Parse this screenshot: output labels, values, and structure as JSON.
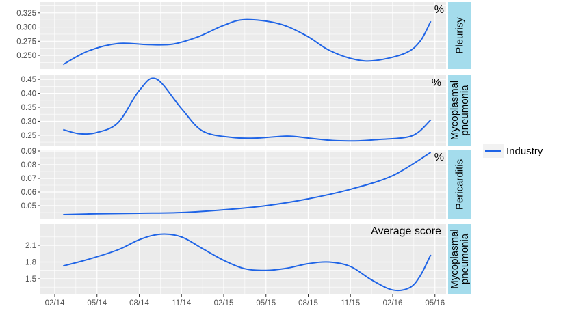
{
  "chart_data": {
    "type": "line",
    "x": [
      "02/14",
      "05/14",
      "08/14",
      "11/14",
      "02/15",
      "05/15",
      "08/15",
      "11/15",
      "02/16",
      "05/16"
    ],
    "legend": {
      "position": "right",
      "entries": [
        "Industry"
      ]
    },
    "colors": {
      "series": "#1f64e6",
      "panel": "#ebebeb",
      "grid": "#ffffff",
      "strip": "#a4dcec"
    },
    "grid": true,
    "panels": [
      {
        "strip_label": [
          "Pleurisy"
        ],
        "annotation": "%",
        "ylim": [
          0.226,
          0.344
        ],
        "yticks": [
          "0.250",
          "0.275",
          "0.300",
          "0.325"
        ],
        "ytick_values": [
          0.25,
          0.275,
          0.3,
          0.325
        ],
        "series": [
          {
            "name": "Industry",
            "x": [
              0.2,
              0.8,
              1.5,
              2.2,
              2.8,
              3.4,
              4.0,
              4.5,
              5.3,
              5.95,
              6.5,
              7.1,
              7.6,
              8.3,
              8.65,
              8.9
            ],
            "values": [
              0.234,
              0.258,
              0.271,
              0.269,
              0.27,
              0.283,
              0.303,
              0.313,
              0.306,
              0.285,
              0.259,
              0.243,
              0.241,
              0.254,
              0.275,
              0.31
            ]
          }
        ]
      },
      {
        "strip_label": [
          "Mycoplasmal",
          "pneumonia"
        ],
        "annotation": "%",
        "ylim": [
          0.213,
          0.465
        ],
        "yticks": [
          "0.25",
          "0.30",
          "0.35",
          "0.40",
          "0.45"
        ],
        "ytick_values": [
          0.25,
          0.3,
          0.35,
          0.4,
          0.45
        ],
        "series": [
          {
            "name": "Industry",
            "x": [
              0.2,
              0.6,
              1.0,
              1.5,
              2.0,
              2.4,
              3.0,
              3.5,
              4.2,
              4.8,
              5.5,
              6.0,
              6.6,
              7.2,
              7.7,
              8.3,
              8.6,
              8.9
            ],
            "values": [
              0.27,
              0.255,
              0.26,
              0.295,
              0.41,
              0.452,
              0.345,
              0.265,
              0.242,
              0.24,
              0.247,
              0.24,
              0.231,
              0.23,
              0.235,
              0.242,
              0.26,
              0.305
            ]
          }
        ]
      },
      {
        "strip_label": [
          "Pericarditis"
        ],
        "annotation": "%",
        "ylim": [
          0.04,
          0.091
        ],
        "yticks": [
          "0.05",
          "0.06",
          "0.07",
          "0.08",
          "0.09"
        ],
        "ytick_values": [
          0.05,
          0.06,
          0.07,
          0.08,
          0.09
        ],
        "series": [
          {
            "name": "Industry",
            "x": [
              0.2,
              1.0,
              2.0,
              3.0,
              4.0,
              5.0,
              6.0,
              7.0,
              8.0,
              8.9
            ],
            "values": [
              0.0435,
              0.0441,
              0.0445,
              0.045,
              0.047,
              0.05,
              0.055,
              0.062,
              0.072,
              0.089
            ]
          }
        ]
      },
      {
        "strip_label": [
          "Mycoplasmal",
          "pneumonia"
        ],
        "annotation": "Average score",
        "ylim": [
          1.23,
          2.48
        ],
        "yticks": [
          "1.5",
          "1.8",
          "2.1"
        ],
        "ytick_values": [
          1.5,
          1.8,
          2.1
        ],
        "series": [
          {
            "name": "Industry",
            "x": [
              0.2,
              0.8,
              1.5,
              2.0,
              2.5,
              3.0,
              3.5,
              4.0,
              4.5,
              5.0,
              5.5,
              6.0,
              6.5,
              7.0,
              7.5,
              8.0,
              8.4,
              8.65,
              8.9
            ],
            "values": [
              1.73,
              1.85,
              2.02,
              2.2,
              2.3,
              2.25,
              2.04,
              1.83,
              1.68,
              1.65,
              1.69,
              1.77,
              1.8,
              1.72,
              1.48,
              1.3,
              1.34,
              1.55,
              1.93
            ]
          }
        ]
      }
    ]
  }
}
